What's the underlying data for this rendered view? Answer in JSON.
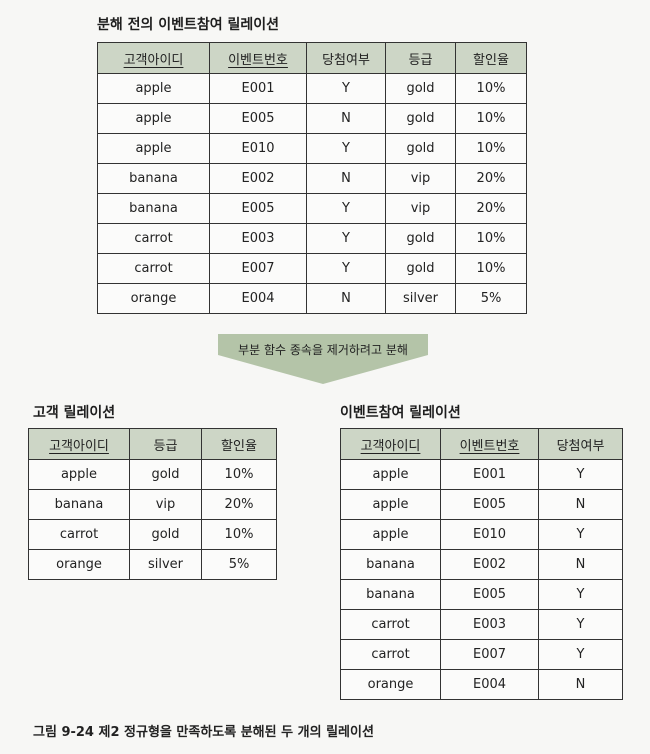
{
  "before": {
    "title": "분해 전의 이벤트참여 릴레이션",
    "headers": [
      "고객아이디",
      "이벤트번호",
      "당첨여부",
      "등급",
      "할인율"
    ],
    "rows": [
      [
        "apple",
        "E001",
        "Y",
        "gold",
        "10%"
      ],
      [
        "apple",
        "E005",
        "N",
        "gold",
        "10%"
      ],
      [
        "apple",
        "E010",
        "Y",
        "gold",
        "10%"
      ],
      [
        "banana",
        "E002",
        "N",
        "vip",
        "20%"
      ],
      [
        "banana",
        "E005",
        "Y",
        "vip",
        "20%"
      ],
      [
        "carrot",
        "E003",
        "Y",
        "gold",
        "10%"
      ],
      [
        "carrot",
        "E007",
        "Y",
        "gold",
        "10%"
      ],
      [
        "orange",
        "E004",
        "N",
        "silver",
        "5%"
      ]
    ]
  },
  "arrow": {
    "label": "부분 함수 종속을 제거하려고 분해",
    "color": "#b4c4a8"
  },
  "customer": {
    "title": "고객 릴레이션",
    "headers": [
      "고객아이디",
      "등급",
      "할인율"
    ],
    "rows": [
      [
        "apple",
        "gold",
        "10%"
      ],
      [
        "banana",
        "vip",
        "20%"
      ],
      [
        "carrot",
        "gold",
        "10%"
      ],
      [
        "orange",
        "silver",
        "5%"
      ]
    ]
  },
  "event": {
    "title": "이벤트참여 릴레이션",
    "headers": [
      "고객아이디",
      "이벤트번호",
      "당첨여부"
    ],
    "rows": [
      [
        "apple",
        "E001",
        "Y"
      ],
      [
        "apple",
        "E005",
        "N"
      ],
      [
        "apple",
        "E010",
        "Y"
      ],
      [
        "banana",
        "E002",
        "N"
      ],
      [
        "banana",
        "E005",
        "Y"
      ],
      [
        "carrot",
        "E003",
        "Y"
      ],
      [
        "carrot",
        "E007",
        "Y"
      ],
      [
        "orange",
        "E004",
        "N"
      ]
    ]
  },
  "caption": "그림 9-24  제2 정규형을 만족하도록 분해된 두 개의 릴레이션",
  "colors": {
    "header_bg": "#cdd6c6",
    "border": "#333333"
  }
}
